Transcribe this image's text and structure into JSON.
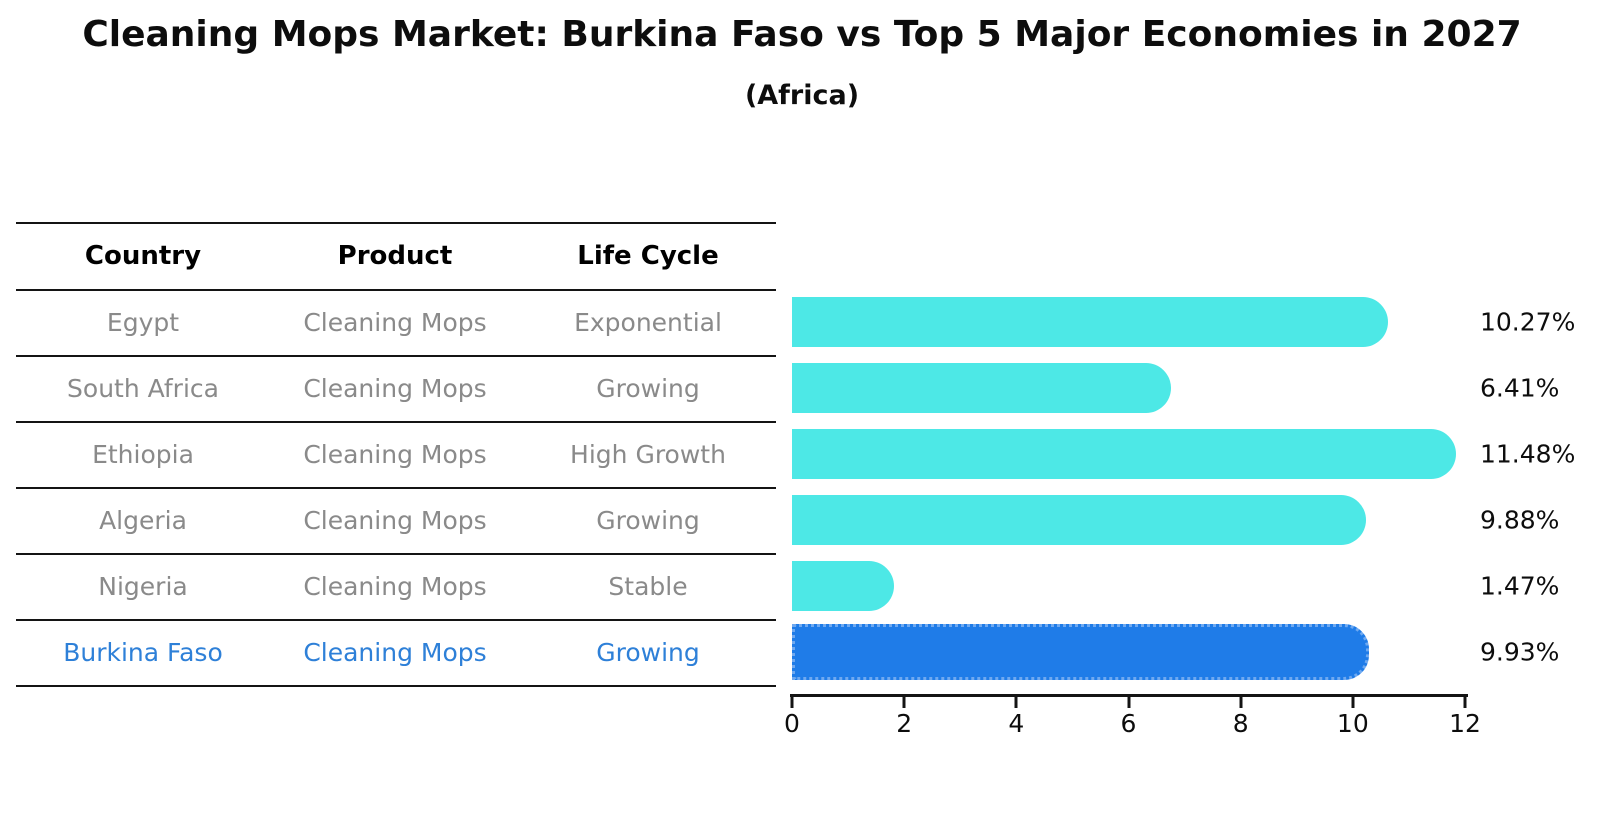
{
  "title": "Cleaning Mops Market: Burkina Faso vs Top 5 Major Economies in 2027",
  "subtitle": "(Africa)",
  "table": {
    "headers": [
      "Country",
      "Product",
      "Life Cycle"
    ],
    "rows": [
      {
        "country": "Egypt",
        "product": "Cleaning Mops",
        "life_cycle": "Exponential",
        "highlight": false
      },
      {
        "country": "South Africa",
        "product": "Cleaning Mops",
        "life_cycle": "Growing",
        "highlight": false
      },
      {
        "country": "Ethiopia",
        "product": "Cleaning Mops",
        "life_cycle": "High Growth",
        "highlight": false
      },
      {
        "country": "Algeria",
        "product": "Cleaning Mops",
        "life_cycle": "Growing",
        "highlight": false
      },
      {
        "country": "Nigeria",
        "product": "Cleaning Mops",
        "life_cycle": "Stable",
        "highlight": false
      },
      {
        "country": "Burkina Faso",
        "product": "Cleaning Mops",
        "life_cycle": "Growing",
        "highlight": true
      }
    ]
  },
  "chart_data": {
    "type": "bar",
    "orientation": "horizontal",
    "title": "Cleaning Mops Market: Burkina Faso vs Top 5 Major Economies in 2027",
    "subtitle": "(Africa)",
    "categories": [
      "Egypt",
      "South Africa",
      "Ethiopia",
      "Algeria",
      "Nigeria",
      "Burkina Faso"
    ],
    "values": [
      10.27,
      6.41,
      11.48,
      9.88,
      1.47,
      9.93
    ],
    "value_labels": [
      "10.27%",
      "6.41%",
      "11.48%",
      "9.88%",
      "1.47%",
      "9.93%"
    ],
    "xlabel": "",
    "ylabel": "",
    "xlim": [
      0,
      12
    ],
    "x_ticks": [
      0,
      2,
      4,
      6,
      8,
      10,
      12
    ],
    "grid": false,
    "legend": false,
    "highlight_index": 5,
    "bar_color": "#4de8e6",
    "highlight_bar_color": "#1f7ce8",
    "highlight_text_color": "#2e80d8"
  }
}
